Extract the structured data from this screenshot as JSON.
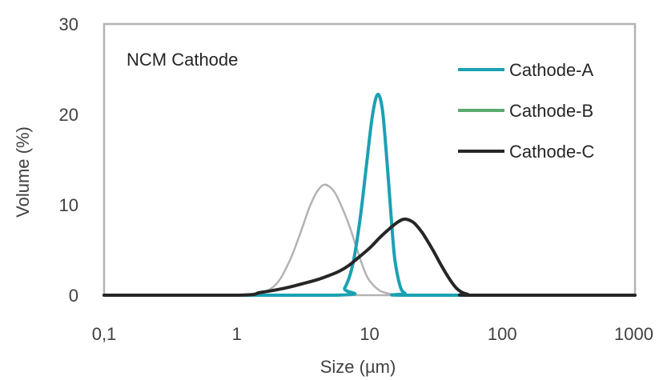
{
  "chart_data": {
    "type": "line",
    "title": "",
    "annotation": "NCM Cathode",
    "xlabel": "Size (µm)",
    "ylabel": "Volume (%)",
    "x_scale": "log",
    "xlim": [
      0.1,
      1000
    ],
    "ylim": [
      0,
      30
    ],
    "x_tick_labels": [
      "0,1",
      "1",
      "10",
      "100",
      "1000"
    ],
    "x_tick_values": [
      0.1,
      1,
      10,
      100,
      1000
    ],
    "y_tick_labels": [
      "0",
      "10",
      "20",
      "30"
    ],
    "y_tick_values": [
      0,
      10,
      20,
      30
    ],
    "grid": false,
    "legend_position": "top-right",
    "series": [
      {
        "name": "Cathode-B",
        "color": "#b3b3b3",
        "legend_color": "#5aaa6e",
        "x": [
          0.1,
          1,
          1.5,
          2,
          2.5,
          3,
          3.5,
          4,
          4.5,
          5,
          5.5,
          6,
          7,
          8,
          9,
          10,
          12,
          15,
          20,
          1000
        ],
        "y": [
          0,
          0,
          0.2,
          1.3,
          3.8,
          6.8,
          9.6,
          11.4,
          12.2,
          12.0,
          11.3,
          10.2,
          7.8,
          5.2,
          3.0,
          1.6,
          0.5,
          0.1,
          0,
          0
        ]
      },
      {
        "name": "Cathode-A",
        "color": "#1ba1b3",
        "legend_color": "#1ba1b3",
        "x": [
          0.1,
          5.5,
          6.5,
          7.5,
          8.5,
          9.5,
          10.5,
          11.5,
          12.5,
          13.5,
          14.5,
          15.5,
          17,
          18.5,
          20,
          1000
        ],
        "y": [
          0,
          0,
          0.8,
          3.5,
          8.5,
          14.5,
          19.8,
          22.2,
          20.5,
          15.0,
          9.0,
          4.0,
          1.0,
          0.2,
          0,
          0
        ]
      },
      {
        "name": "Cathode-C",
        "color": "#262626",
        "legend_color": "#262626",
        "x": [
          0.1,
          1,
          1.5,
          2,
          2.5,
          3,
          4,
          5,
          6,
          7,
          8,
          10,
          12,
          14,
          16,
          18,
          20,
          22,
          25,
          30,
          35,
          40,
          45,
          50,
          55,
          60,
          1000
        ],
        "y": [
          0,
          0,
          0.3,
          0.6,
          0.9,
          1.2,
          1.7,
          2.2,
          2.7,
          3.3,
          4.0,
          5.2,
          6.4,
          7.3,
          8.0,
          8.4,
          8.3,
          7.9,
          6.9,
          5.0,
          3.2,
          1.8,
          0.8,
          0.3,
          0.1,
          0,
          0
        ]
      }
    ]
  }
}
